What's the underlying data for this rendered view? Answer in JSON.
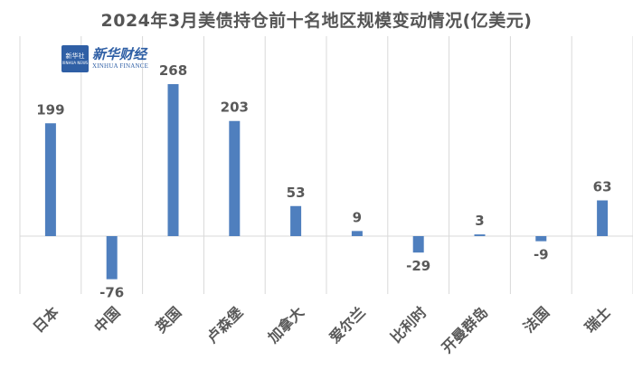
{
  "logo": {
    "badge_line1": "新华社",
    "badge_line2": "XINHUA NEWS",
    "text_cn": "新华财经",
    "text_en": "XINHUA FINANCE"
  },
  "chart_data": {
    "type": "bar",
    "title": "2024年3月美债持仓前十名地区规模变动情况(亿美元)",
    "categories": [
      "日本",
      "中国",
      "英国",
      "卢森堡",
      "加拿大",
      "爱尔兰",
      "比利时",
      "开曼群岛",
      "法国",
      "瑞士"
    ],
    "values": [
      199,
      -76,
      268,
      203,
      53,
      9,
      -29,
      3,
      -9,
      63
    ],
    "series": [
      {
        "values": [
          199,
          -76,
          268,
          203,
          53,
          9,
          -29,
          3,
          -9,
          63
        ]
      }
    ],
    "ylim": [
      -100,
      300
    ],
    "grid": "vertical category separators",
    "legend": "none",
    "colors": {
      "bar": "#4f7fbe",
      "label": "#595959",
      "separator": "#d9d9d9"
    }
  }
}
